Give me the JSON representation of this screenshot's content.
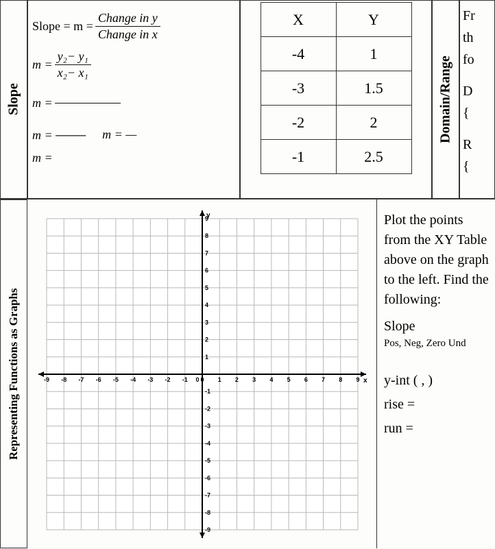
{
  "labels": {
    "slope": "Slope",
    "domain_range": "Domain/Range",
    "rep_funcs": "Representing Functions\nas Graphs"
  },
  "formulas": {
    "slope_eq": "Slope = m =",
    "change_y": "Change in y",
    "change_x": "Change in x",
    "m_eq": "m =",
    "y2y1": "y₂− y₁",
    "x2x1": "x₂− x₁",
    "m_eq2": "m =",
    "m_eq3": "m =",
    "m_eq4": "m = —",
    "m_eq5": "m ="
  },
  "xy_table": {
    "headers": [
      "X",
      "Y"
    ],
    "rows": [
      [
        "-4",
        "1"
      ],
      [
        "-3",
        "1.5"
      ],
      [
        "-2",
        "2"
      ],
      [
        "-1",
        "2.5"
      ]
    ]
  },
  "right_fragments": {
    "l1": "Fr",
    "l2": "th",
    "l3": "fo",
    "l4": "D",
    "l5": "{",
    "l6": "R",
    "l7": "{"
  },
  "instructions": {
    "p1": "Plot the points from the XY Table above on the graph to the left. Find the following:",
    "slope": "Slope",
    "pnzu": "Pos, Neg, Zero Und",
    "yint": "y-int  (     ,     )",
    "rise": "rise =",
    "run": "run ="
  },
  "graph": {
    "xmin": -9,
    "xmax": 9,
    "ymin": -9,
    "ymax": 9,
    "grid_color": "#b8b8b8",
    "axis_color": "#000000",
    "bg": "#ffffff",
    "label_fontsize": 9,
    "xticks": [
      -9,
      -8,
      -7,
      -6,
      -5,
      -4,
      -3,
      -2,
      -1,
      0,
      1,
      2,
      3,
      4,
      5,
      6,
      7,
      8,
      9
    ],
    "yticks": [
      -9,
      -8,
      -7,
      -6,
      -5,
      -4,
      -3,
      -2,
      -1,
      1,
      2,
      3,
      4,
      5,
      6,
      7,
      8,
      9
    ],
    "xaxis_label": "x",
    "yaxis_label": "y"
  }
}
